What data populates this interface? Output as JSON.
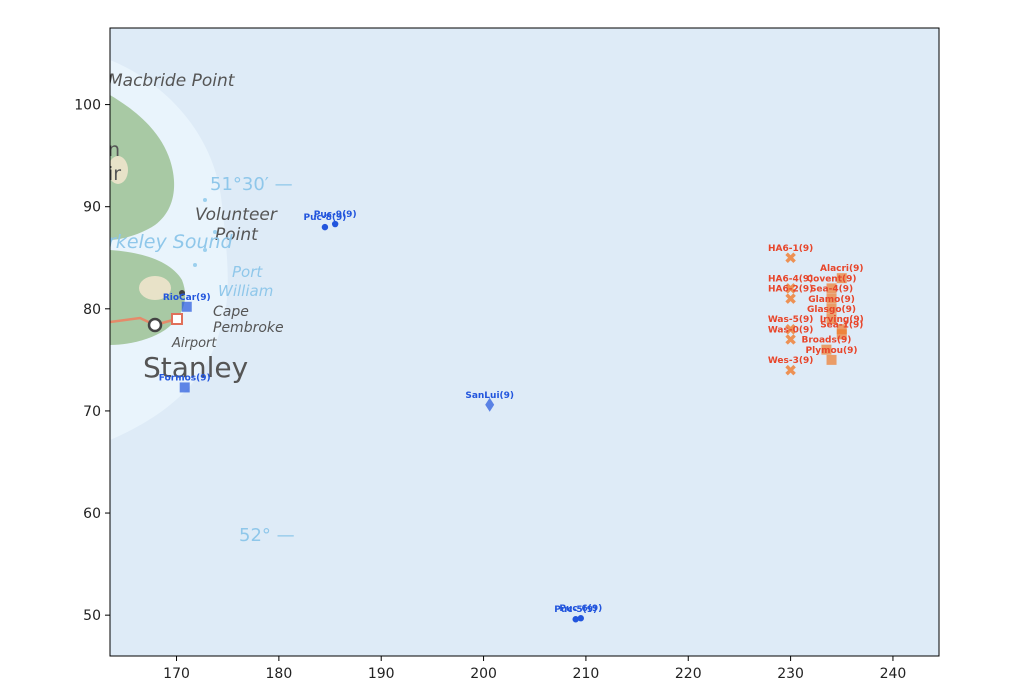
{
  "map": {
    "place_labels": [
      {
        "key": "macbride-point",
        "text": "Macbride Point"
      },
      {
        "key": "volunteer-point-1",
        "text": "Volunteer"
      },
      {
        "key": "volunteer-point-2",
        "text": "Point"
      },
      {
        "key": "berkeley-sound",
        "text": "rkeley Sound"
      },
      {
        "key": "port-william-1",
        "text": "Port"
      },
      {
        "key": "port-william-2",
        "text": "William"
      },
      {
        "key": "cape-pembroke-1",
        "text": "Cape"
      },
      {
        "key": "cape-pembroke-2",
        "text": "Pembroke"
      },
      {
        "key": "airport",
        "text": "Airport"
      },
      {
        "key": "stanley",
        "text": "Stanley"
      },
      {
        "key": "cut-n",
        "text": "n"
      },
      {
        "key": "cut-ir",
        "text": "ir"
      }
    ],
    "lat_labels": [
      "51°30′ —",
      "52° —"
    ]
  },
  "chart_data": {
    "type": "scatter",
    "xlim": [
      163.5,
      244.5
    ],
    "ylim": [
      46,
      107.5
    ],
    "xticks": [
      170,
      180,
      190,
      200,
      210,
      220,
      230,
      240
    ],
    "yticks": [
      50,
      60,
      70,
      80,
      90,
      100
    ],
    "grid": false,
    "colors": {
      "blue": "#2255dd",
      "orange": "#f07a2a",
      "orange_text": "#e8452a"
    },
    "points": [
      {
        "label": "Puc-8(9)",
        "x": 184.5,
        "y": 88.0,
        "color": "blue",
        "marker": "circle"
      },
      {
        "label": "Puc-9(9)",
        "x": 185.5,
        "y": 88.3,
        "color": "blue",
        "marker": "circle"
      },
      {
        "label": "RioCar(9)",
        "x": 171.0,
        "y": 80.2,
        "color": "blue",
        "marker": "square"
      },
      {
        "label": "Formos(9)",
        "x": 170.8,
        "y": 72.3,
        "color": "blue",
        "marker": "square"
      },
      {
        "label": "SanLui(9)",
        "x": 200.6,
        "y": 70.6,
        "color": "blue",
        "marker": "diamond"
      },
      {
        "label": "Puc-5(9)",
        "x": 209.0,
        "y": 49.6,
        "color": "blue",
        "marker": "circle"
      },
      {
        "label": "Puc-6(9)",
        "x": 209.5,
        "y": 49.7,
        "color": "blue",
        "marker": "circle"
      },
      {
        "label": "HA6-1(9)",
        "x": 230.0,
        "y": 85.0,
        "color": "orange",
        "marker": "x"
      },
      {
        "label": "Alacri(9)",
        "x": 235.0,
        "y": 83.0,
        "color": "orange",
        "marker": "square"
      },
      {
        "label": "Covent(9)",
        "x": 234.0,
        "y": 82.0,
        "color": "orange",
        "marker": "square"
      },
      {
        "label": "HA6-4(9)",
        "x": 230.0,
        "y": 82.0,
        "color": "orange",
        "marker": "x"
      },
      {
        "label": "HA6-2(9)",
        "x": 230.0,
        "y": 81.0,
        "color": "orange",
        "marker": "x"
      },
      {
        "label": "Sea-4(9)",
        "x": 234.0,
        "y": 81.0,
        "color": "orange",
        "marker": "square"
      },
      {
        "label": "Glamo(9)",
        "x": 234.0,
        "y": 80.0,
        "color": "orange",
        "marker": "square"
      },
      {
        "label": "Glasgo(9)",
        "x": 234.0,
        "y": 79.0,
        "color": "orange",
        "marker": "square"
      },
      {
        "label": "Was-5(9)",
        "x": 230.0,
        "y": 78.0,
        "color": "orange",
        "marker": "x"
      },
      {
        "label": "Irving(9)",
        "x": 235.0,
        "y": 78.0,
        "color": "orange",
        "marker": "square"
      },
      {
        "label": "Sea-1(9)",
        "x": 235.0,
        "y": 77.5,
        "color": "orange",
        "marker": "square"
      },
      {
        "label": "Was-0(9)",
        "x": 230.0,
        "y": 77.0,
        "color": "orange",
        "marker": "x"
      },
      {
        "label": "Broads(9)",
        "x": 233.5,
        "y": 76.0,
        "color": "orange",
        "marker": "square"
      },
      {
        "label": "Plymou(9)",
        "x": 234.0,
        "y": 75.0,
        "color": "orange",
        "marker": "square"
      },
      {
        "label": "Wes-3(9)",
        "x": 230.0,
        "y": 74.0,
        "color": "orange",
        "marker": "x"
      }
    ]
  }
}
